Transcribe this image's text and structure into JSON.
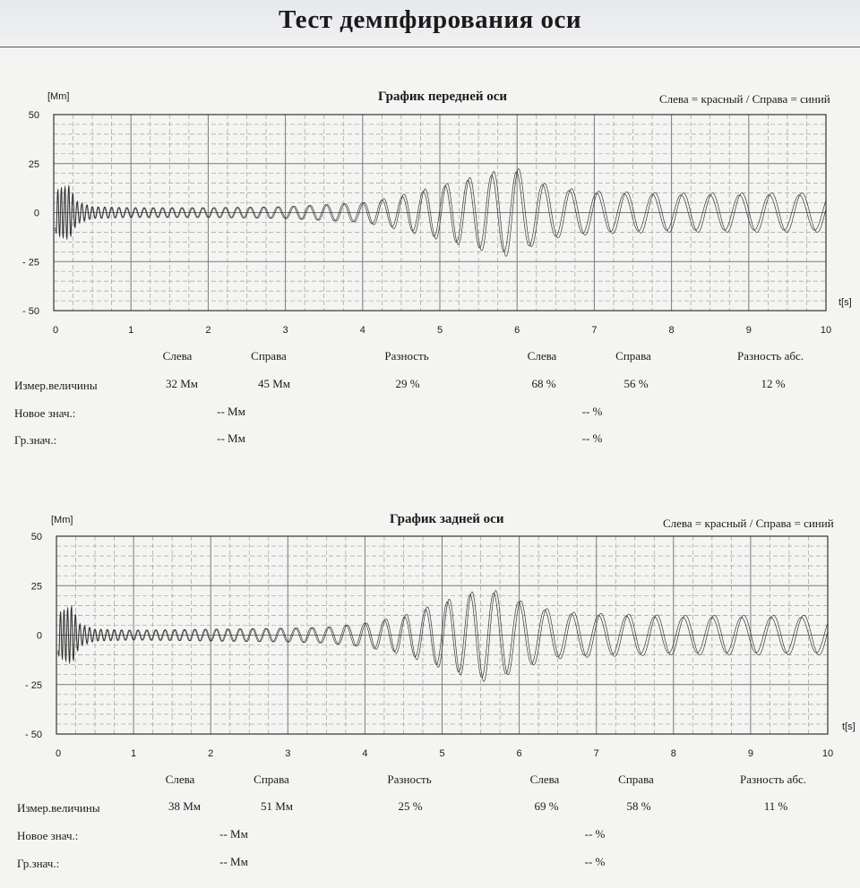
{
  "page": {
    "title": "Тест демпфирования оси"
  },
  "charts": [
    {
      "title": "График передней оси",
      "legend_note": "Слева = красный / Справа = синий",
      "y_unit": "[Мm]",
      "x_unit": "t[s]",
      "table": {
        "headers": [
          "Слева",
          "Справа",
          "Разность",
          "Слева",
          "Справа",
          "Разность абс."
        ],
        "rows": [
          {
            "label": "Измер.величины",
            "cells": [
              "32 Мм",
              "45 Мм",
              "29 %",
              "68 %",
              "56 %",
              "12 %"
            ]
          },
          {
            "label": "Новое знач.:",
            "cells": [
              "-- Мм",
              "-- %"
            ]
          },
          {
            "label": "Гр.знач.:",
            "cells": [
              "-- Мм",
              "-- %"
            ]
          }
        ]
      }
    },
    {
      "title": "График задней оси",
      "legend_note": "Слева = красный / Справа = синий",
      "y_unit": "[Мm]",
      "x_unit": "t[s]",
      "table": {
        "headers": [
          "Слева",
          "Справа",
          "Разность",
          "Слева",
          "Справа",
          "Разность абс."
        ],
        "rows": [
          {
            "label": "Измер.величины",
            "cells": [
              "38 Мм",
              "51 Мм",
              "25 %",
              "69 %",
              "58 %",
              "11 %"
            ]
          },
          {
            "label": "Новое знач.:",
            "cells": [
              "-- Мм",
              "-- %"
            ]
          },
          {
            "label": "Гр.знач.:",
            "cells": [
              "-- Мм",
              "-- %"
            ]
          }
        ]
      }
    }
  ],
  "chart_data": [
    {
      "type": "line",
      "title": "График передней оси",
      "xlabel": "t[s]",
      "ylabel": "[Мm]",
      "xlim": [
        0,
        10
      ],
      "ylim": [
        -50,
        50
      ],
      "x_ticks": [
        "0",
        "1",
        "2",
        "3",
        "4",
        "5",
        "6",
        "7",
        "8",
        "9",
        "10"
      ],
      "y_ticks": [
        "50",
        "25",
        "0",
        "- 25",
        "- 50"
      ],
      "grid": true,
      "line_color": "#262626",
      "series": [
        {
          "amp_x": [
            0,
            0.05,
            0.1,
            0.2,
            0.3,
            0.5,
            1,
            2,
            3,
            3.5,
            4,
            4.5,
            5,
            5.5,
            5.8,
            6,
            6.2,
            6.5,
            7,
            8,
            9,
            10
          ],
          "amp_y": [
            9,
            12,
            13,
            14,
            6,
            3,
            2.5,
            2.5,
            3,
            4,
            5,
            9,
            14,
            19,
            22,
            23,
            17,
            13,
            11,
            10,
            10,
            10
          ],
          "freq_hz": [
            22,
            22,
            17,
            12,
            9,
            7,
            5,
            4,
            3.5,
            3,
            2.8,
            2.5
          ]
        },
        {
          "amp_x": [
            0,
            0.05,
            0.1,
            0.2,
            0.3,
            0.5,
            1,
            2,
            3,
            3.5,
            4,
            4.5,
            5,
            5.5,
            5.8,
            6,
            6.2,
            6.5,
            7,
            8,
            9,
            10
          ],
          "amp_y": [
            9,
            11,
            12,
            13,
            5,
            3,
            2.5,
            2.5,
            3,
            4,
            5,
            8,
            13,
            18,
            20,
            21,
            16,
            12,
            10,
            9,
            9,
            9
          ],
          "freq_hz": [
            22,
            22,
            17,
            12,
            9,
            7,
            5,
            4,
            3.5,
            3,
            2.8,
            2.5
          ]
        }
      ]
    },
    {
      "type": "line",
      "title": "График задней оси",
      "xlabel": "t[s]",
      "ylabel": "[Мm]",
      "xlim": [
        0,
        10
      ],
      "ylim": [
        -50,
        50
      ],
      "x_ticks": [
        "0",
        "1",
        "2",
        "3",
        "4",
        "5",
        "6",
        "7",
        "8",
        "9",
        "10"
      ],
      "y_ticks": [
        "50",
        "25",
        "0",
        "- 25",
        "- 50"
      ],
      "grid": true,
      "line_color": "#262626",
      "series": [
        {
          "amp_x": [
            0,
            0.05,
            0.1,
            0.2,
            0.3,
            0.5,
            1,
            2,
            3,
            3.5,
            4,
            4.5,
            5,
            5.4,
            5.6,
            5.8,
            6.1,
            6.5,
            7,
            8,
            9,
            10
          ],
          "amp_y": [
            9,
            12,
            13,
            15,
            6,
            3,
            2.5,
            3,
            3.5,
            4,
            6,
            10,
            17,
            22,
            24,
            21,
            16,
            12,
            11,
            10,
            10,
            10
          ],
          "freq_hz": [
            22,
            22,
            17,
            12,
            9,
            7,
            5,
            4,
            3.5,
            3,
            2.8,
            2.5
          ]
        },
        {
          "amp_x": [
            0,
            0.05,
            0.1,
            0.2,
            0.3,
            0.5,
            1,
            2,
            3,
            3.5,
            4,
            4.5,
            5,
            5.4,
            5.6,
            5.8,
            6.1,
            6.5,
            7,
            8,
            9,
            10
          ],
          "amp_y": [
            9,
            11,
            12,
            14,
            5,
            3,
            2.5,
            3,
            3.5,
            4,
            6,
            9,
            16,
            21,
            22,
            20,
            15,
            11,
            10,
            9,
            9,
            9
          ],
          "freq_hz": [
            22,
            22,
            17,
            12,
            9,
            7,
            5,
            4,
            3.5,
            3,
            2.8,
            2.5
          ]
        }
      ]
    }
  ]
}
